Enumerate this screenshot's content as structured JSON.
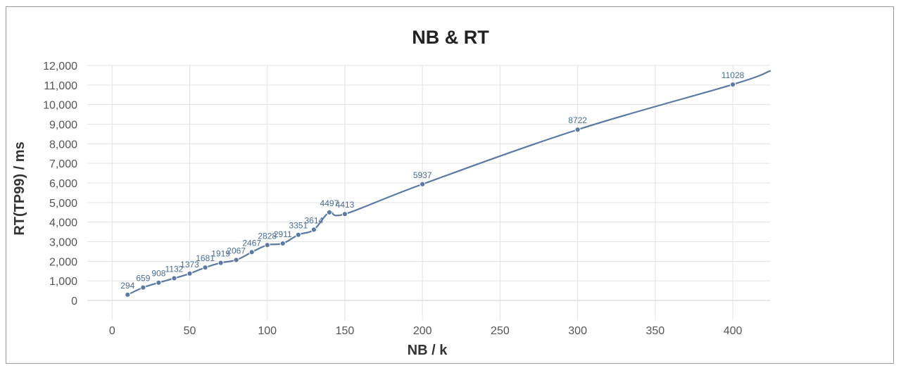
{
  "chart_data": {
    "type": "line",
    "title": "NB & RT",
    "xlabel": "NB / k",
    "ylabel": "RT(TP99) / ms",
    "xlim": [
      -16,
      424
    ],
    "ylim": [
      0,
      12000
    ],
    "x_ticks": [
      0,
      50,
      100,
      150,
      200,
      250,
      300,
      350,
      400
    ],
    "x_tick_labels": [
      "0",
      "50",
      "100",
      "150",
      "200",
      "250",
      "300",
      "350",
      "400"
    ],
    "y_ticks": [
      0,
      1000,
      2000,
      3000,
      4000,
      5000,
      6000,
      7000,
      8000,
      9000,
      10000,
      11000,
      12000
    ],
    "y_tick_labels": [
      "0",
      "1,000",
      "2,000",
      "3,000",
      "4,000",
      "5,000",
      "6,000",
      "7,000",
      "8,000",
      "9,000",
      "10,000",
      "11,000",
      "12,000"
    ],
    "grid": true,
    "color": "#5a7aa3",
    "series": [
      {
        "x": [
          10,
          20,
          30,
          40,
          50,
          60,
          70,
          80,
          90,
          100,
          110,
          120,
          130,
          140,
          150,
          200,
          300,
          400
        ],
        "values": [
          294,
          659,
          908,
          1132,
          1373,
          1681,
          1919,
          2067,
          2467,
          2828,
          2911,
          3351,
          3614,
          4497,
          4413,
          5937,
          8722,
          11028
        ],
        "labels": [
          "294",
          "659",
          "908",
          "1132",
          "1373",
          "1681",
          "1919",
          "2067",
          "2467",
          "2828",
          "2911",
          "3351",
          "3614",
          "4497",
          "4413",
          "5937",
          "8722",
          "11028"
        ]
      }
    ]
  }
}
